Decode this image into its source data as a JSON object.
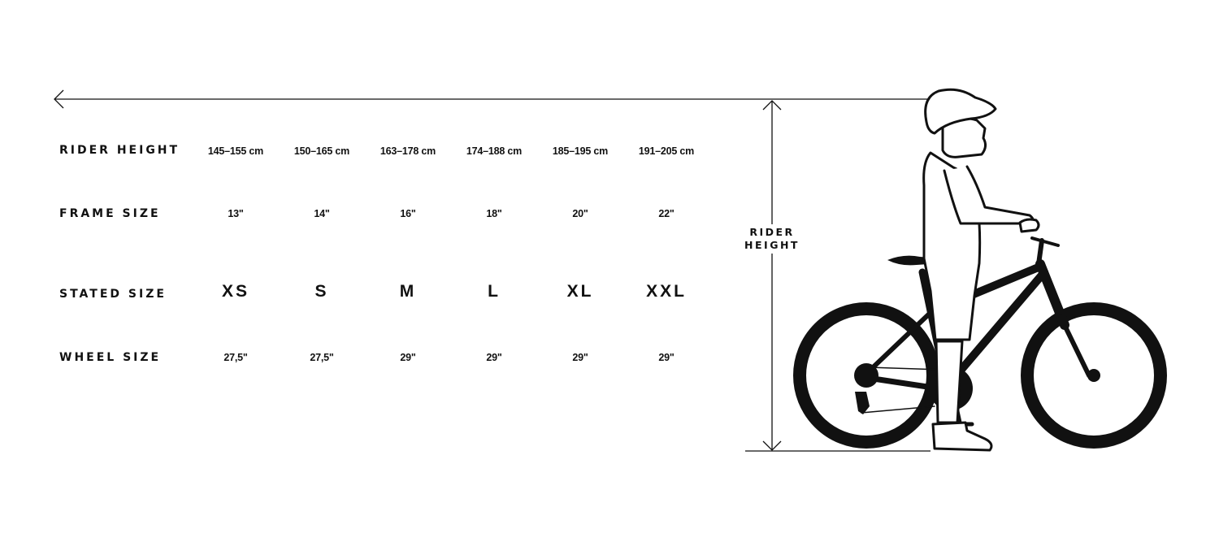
{
  "rows": [
    {
      "label": "RIDER HEIGHT",
      "values": [
        "145–155 cm",
        "150–165 cm",
        "163–178 cm",
        "174–188 cm",
        "185–195 cm",
        "191–205 cm"
      ]
    },
    {
      "label": "FRAME SIZE",
      "values": [
        "13\"",
        "14\"",
        "16\"",
        "18\"",
        "20\"",
        "22\""
      ]
    },
    {
      "label": "STATED SIZE",
      "values": [
        "XS",
        "S",
        "M",
        "L",
        "XL",
        "XXL"
      ]
    },
    {
      "label": "WHEEL SIZE",
      "values": [
        "27,5\"",
        "27,5\"",
        "29\"",
        "29\"",
        "29\"",
        "29\""
      ]
    }
  ],
  "diagram": {
    "measure_label_line1": "RIDER",
    "measure_label_line2": "HEIGHT"
  },
  "colors": {
    "ink": "#111111",
    "background": "#ffffff"
  }
}
